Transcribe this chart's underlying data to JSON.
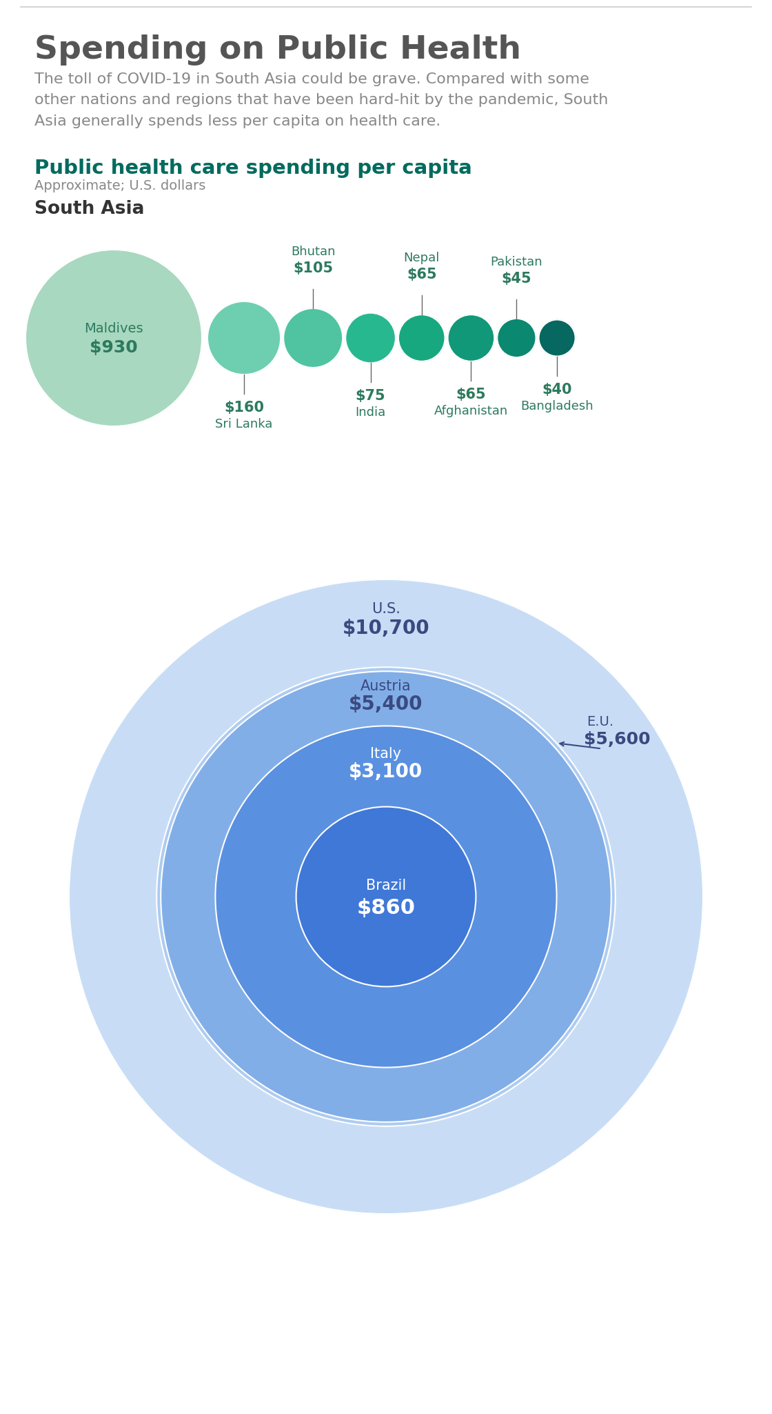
{
  "title": "Spending on Public Health",
  "subtitle": "The toll of COVID-19 in South Asia could be grave. Compared with some\nother nations and regions that have been hard-hit by the pandemic, South\nAsia generally spends less per capita on health care.",
  "section_title": "Public health care spending per capita",
  "section_subtitle": "Approximate; U.S. dollars",
  "south_asia_label": "South Asia",
  "title_color": "#555555",
  "subtitle_color": "#888888",
  "section_title_color": "#006b5e",
  "south_asia_heading_color": "#333333",
  "south_asia_bubbles": [
    {
      "name": "Maldives",
      "value": 930,
      "label": "$930",
      "color": "#a8d8c0",
      "pos": "inside",
      "text_color": "#2d7a5e"
    },
    {
      "name": "Sri Lanka",
      "value": 160,
      "label": "$160",
      "color": "#6ecfb0",
      "pos": "below",
      "text_color": "#2d7a5e"
    },
    {
      "name": "Bhutan",
      "value": 105,
      "label": "$105",
      "color": "#50c4a0",
      "pos": "above",
      "text_color": "#2d7a5e"
    },
    {
      "name": "India",
      "value": 75,
      "label": "$75",
      "color": "#28b890",
      "pos": "below",
      "text_color": "#2d7a5e"
    },
    {
      "name": "Nepal",
      "value": 65,
      "label": "$65",
      "color": "#18a880",
      "pos": "above",
      "text_color": "#2d7a5e"
    },
    {
      "name": "Afghanistan",
      "value": 65,
      "label": "$65",
      "color": "#109878",
      "pos": "below",
      "text_color": "#2d7a5e"
    },
    {
      "name": "Pakistan",
      "value": 45,
      "label": "$45",
      "color": "#0a8870",
      "pos": "above",
      "text_color": "#2d7a5e"
    },
    {
      "name": "Bangladesh",
      "value": 40,
      "label": "$40",
      "color": "#066860",
      "pos": "below",
      "text_color": "#2d7a5e"
    }
  ],
  "world_bubbles": [
    {
      "name": "U.S.",
      "value": 10700,
      "label": "$10,700",
      "color": "#c8ddf5",
      "text_color": "#3a4a80"
    },
    {
      "name": "E.U.",
      "value": 5600,
      "label": "$5,600",
      "color": "#aecbf0",
      "text_color": "#3a4a80"
    },
    {
      "name": "Austria",
      "value": 5400,
      "label": "$5,400",
      "color": "#82aee8",
      "text_color": "#3a4a80"
    },
    {
      "name": "Italy",
      "value": 3100,
      "label": "$3,100",
      "color": "#5a90e0",
      "text_color": "#ffffff"
    },
    {
      "name": "Brazil",
      "value": 860,
      "label": "$860",
      "color": "#4078d8",
      "text_color": "#ffffff"
    }
  ],
  "background_color": "#ffffff"
}
